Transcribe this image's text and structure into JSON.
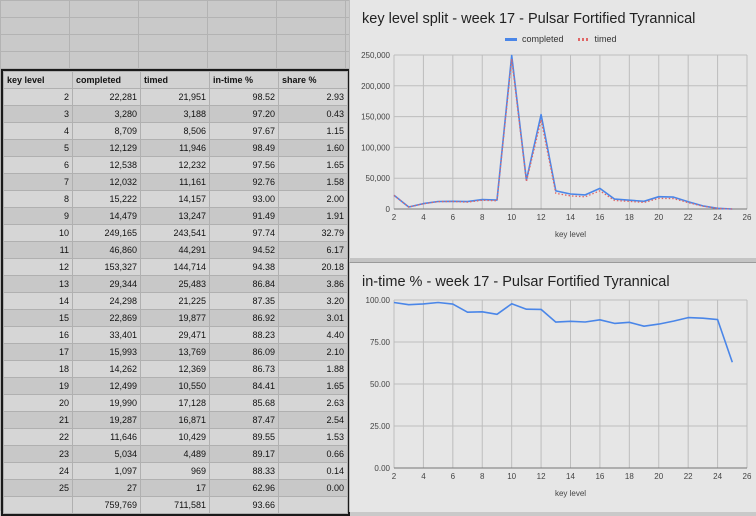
{
  "table": {
    "headers": [
      "key level",
      "completed",
      "timed",
      "in-time %",
      "share %"
    ],
    "rows": [
      [
        "2",
        "22,281",
        "21,951",
        "98.52",
        "2.93"
      ],
      [
        "3",
        "3,280",
        "3,188",
        "97.20",
        "0.43"
      ],
      [
        "4",
        "8,709",
        "8,506",
        "97.67",
        "1.15"
      ],
      [
        "5",
        "12,129",
        "11,946",
        "98.49",
        "1.60"
      ],
      [
        "6",
        "12,538",
        "12,232",
        "97.56",
        "1.65"
      ],
      [
        "7",
        "12,032",
        "11,161",
        "92.76",
        "1.58"
      ],
      [
        "8",
        "15,222",
        "14,157",
        "93.00",
        "2.00"
      ],
      [
        "9",
        "14,479",
        "13,247",
        "91.49",
        "1.91"
      ],
      [
        "10",
        "249,165",
        "243,541",
        "97.74",
        "32.79"
      ],
      [
        "11",
        "46,860",
        "44,291",
        "94.52",
        "6.17"
      ],
      [
        "12",
        "153,327",
        "144,714",
        "94.38",
        "20.18"
      ],
      [
        "13",
        "29,344",
        "25,483",
        "86.84",
        "3.86"
      ],
      [
        "14",
        "24,298",
        "21,225",
        "87.35",
        "3.20"
      ],
      [
        "15",
        "22,869",
        "19,877",
        "86.92",
        "3.01"
      ],
      [
        "16",
        "33,401",
        "29,471",
        "88.23",
        "4.40"
      ],
      [
        "17",
        "15,993",
        "13,769",
        "86.09",
        "2.10"
      ],
      [
        "18",
        "14,262",
        "12,369",
        "86.73",
        "1.88"
      ],
      [
        "19",
        "12,499",
        "10,550",
        "84.41",
        "1.65"
      ],
      [
        "20",
        "19,990",
        "17,128",
        "85.68",
        "2.63"
      ],
      [
        "21",
        "19,287",
        "16,871",
        "87.47",
        "2.54"
      ],
      [
        "22",
        "11,646",
        "10,429",
        "89.55",
        "1.53"
      ],
      [
        "23",
        "5,034",
        "4,489",
        "89.17",
        "0.66"
      ],
      [
        "24",
        "1,097",
        "969",
        "88.33",
        "0.14"
      ],
      [
        "25",
        "27",
        "17",
        "62.96",
        "0.00"
      ]
    ],
    "totals": [
      "",
      "759,769",
      "711,581",
      "93.66",
      ""
    ]
  },
  "chart_data": [
    {
      "type": "line",
      "title": "key level split - week 17 - Pulsar Fortified Tyrannical",
      "xlabel": "key level",
      "ylabel": "",
      "xlim": [
        2,
        26
      ],
      "ylim": [
        0,
        250000
      ],
      "xticks": [
        "2",
        "4",
        "6",
        "8",
        "10",
        "12",
        "14",
        "16",
        "18",
        "20",
        "22",
        "24",
        "26"
      ],
      "yticks": [
        "0",
        "50,000",
        "100,000",
        "150,000",
        "200,000",
        "250,000"
      ],
      "legend_position": "top",
      "x": [
        2,
        3,
        4,
        5,
        6,
        7,
        8,
        9,
        10,
        11,
        12,
        13,
        14,
        15,
        16,
        17,
        18,
        19,
        20,
        21,
        22,
        23,
        24,
        25
      ],
      "series": [
        {
          "name": "completed",
          "color": "#4a86e8",
          "style": "solid",
          "values": [
            22281,
            3280,
            8709,
            12129,
            12538,
            12032,
            15222,
            14479,
            249165,
            46860,
            153327,
            29344,
            24298,
            22869,
            33401,
            15993,
            14262,
            12499,
            19990,
            19287,
            11646,
            5034,
            1097,
            27
          ]
        },
        {
          "name": "timed",
          "color": "#e06666",
          "style": "dotted",
          "values": [
            21951,
            3188,
            8506,
            11946,
            12232,
            11161,
            14157,
            13247,
            243541,
            44291,
            144714,
            25483,
            21225,
            19877,
            29471,
            13769,
            12369,
            10550,
            17128,
            16871,
            10429,
            4489,
            969,
            17
          ]
        }
      ]
    },
    {
      "type": "line",
      "title": "in-time % - week 17 - Pulsar Fortified Tyrannical",
      "xlabel": "key level",
      "ylabel": "",
      "xlim": [
        2,
        26
      ],
      "ylim": [
        0,
        100
      ],
      "xticks": [
        "2",
        "4",
        "6",
        "8",
        "10",
        "12",
        "14",
        "16",
        "18",
        "20",
        "22",
        "24",
        "26"
      ],
      "yticks": [
        "0.00",
        "25.00",
        "50.00",
        "75.00",
        "100.00"
      ],
      "x": [
        2,
        3,
        4,
        5,
        6,
        7,
        8,
        9,
        10,
        11,
        12,
        13,
        14,
        15,
        16,
        17,
        18,
        19,
        20,
        21,
        22,
        23,
        24,
        25
      ],
      "series": [
        {
          "color": "#4a86e8",
          "style": "solid",
          "values": [
            98.52,
            97.2,
            97.67,
            98.49,
            97.56,
            92.76,
            93.0,
            91.49,
            97.74,
            94.52,
            94.38,
            86.84,
            87.35,
            86.92,
            88.23,
            86.09,
            86.73,
            84.41,
            85.68,
            87.47,
            89.55,
            89.17,
            88.33,
            62.96
          ]
        }
      ]
    }
  ]
}
